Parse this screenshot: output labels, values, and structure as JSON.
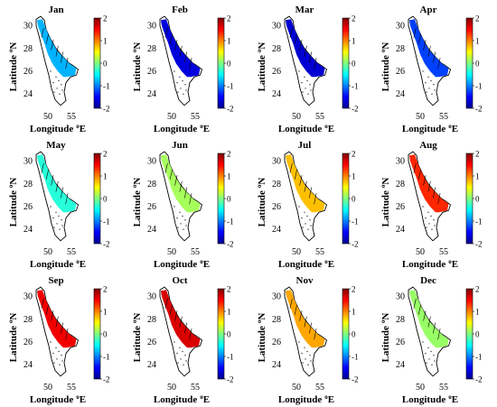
{
  "figure": {
    "panels": [
      {
        "title": "Jan",
        "level": -0.8
      },
      {
        "title": "Feb",
        "level": -1.65
      },
      {
        "title": "Mar",
        "level": -1.7
      },
      {
        "title": "Apr",
        "level": -1.25
      },
      {
        "title": "May",
        "level": -0.35
      },
      {
        "title": "Jun",
        "level": 0.15
      },
      {
        "title": "Jul",
        "level": 0.75
      },
      {
        "title": "Aug",
        "level": 1.35
      },
      {
        "title": "Sep",
        "level": 1.55
      },
      {
        "title": "Oct",
        "level": 1.65
      },
      {
        "title": "Nov",
        "level": 0.85
      },
      {
        "title": "Dec",
        "level": 0.1
      }
    ],
    "xlabel": "Longitude",
    "xlabel_sup": "o",
    "xlabel_unit": "E",
    "ylabel": "Latitude",
    "ylabel_sup": "o",
    "ylabel_unit": "N",
    "xticks": [
      "50",
      "55"
    ],
    "yticks": [
      "30",
      "28",
      "26",
      "24"
    ],
    "colorbar": {
      "ticks": [
        "2",
        "1",
        "0",
        "-1",
        "-2"
      ],
      "range": [
        -2,
        2
      ],
      "colormap": [
        "#00008f",
        "#0000ff",
        "#0080ff",
        "#00ffff",
        "#80ff80",
        "#ffff00",
        "#ff8000",
        "#ff0000",
        "#800000"
      ]
    },
    "colors": {
      "coast": "#000000",
      "contour": "#000000"
    }
  }
}
